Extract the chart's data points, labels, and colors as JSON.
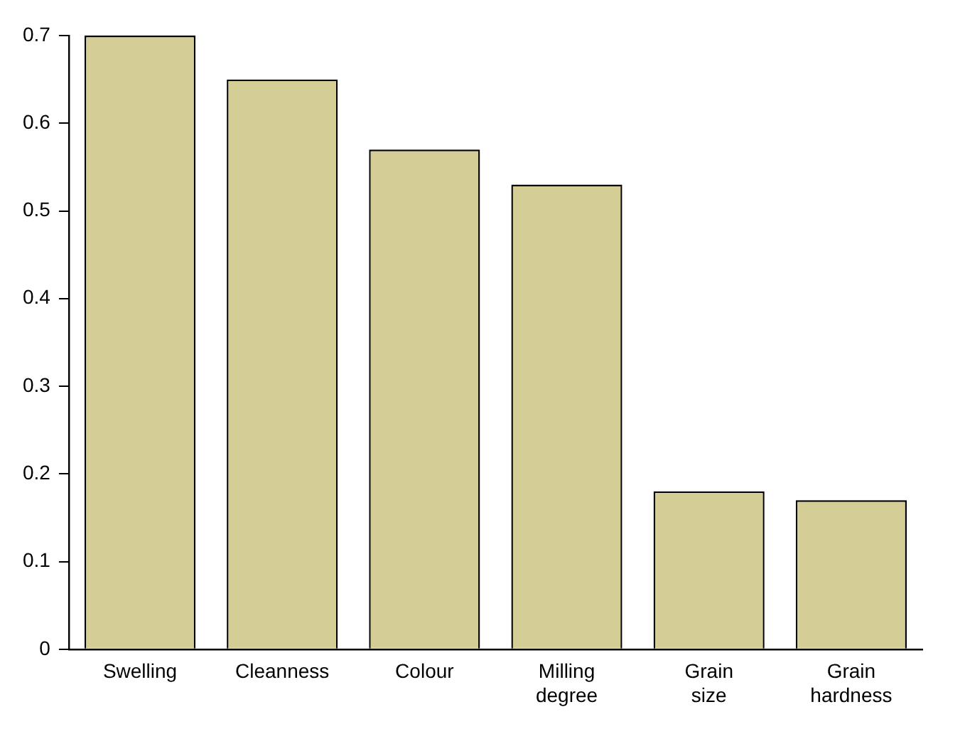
{
  "chart_data": {
    "type": "bar",
    "categories": [
      "Swelling",
      "Cleanness",
      "Colour",
      "Milling\ndegree",
      "Grain\nsize",
      "Grain\nhardness"
    ],
    "values": [
      0.7,
      0.65,
      0.57,
      0.53,
      0.18,
      0.17
    ],
    "color": "#d4ce96",
    "ylim": [
      0,
      0.7
    ],
    "yticks": [
      0,
      0.1,
      0.2,
      0.3,
      0.4,
      0.5,
      0.6,
      0.7
    ],
    "grid": false,
    "legend": false
  }
}
